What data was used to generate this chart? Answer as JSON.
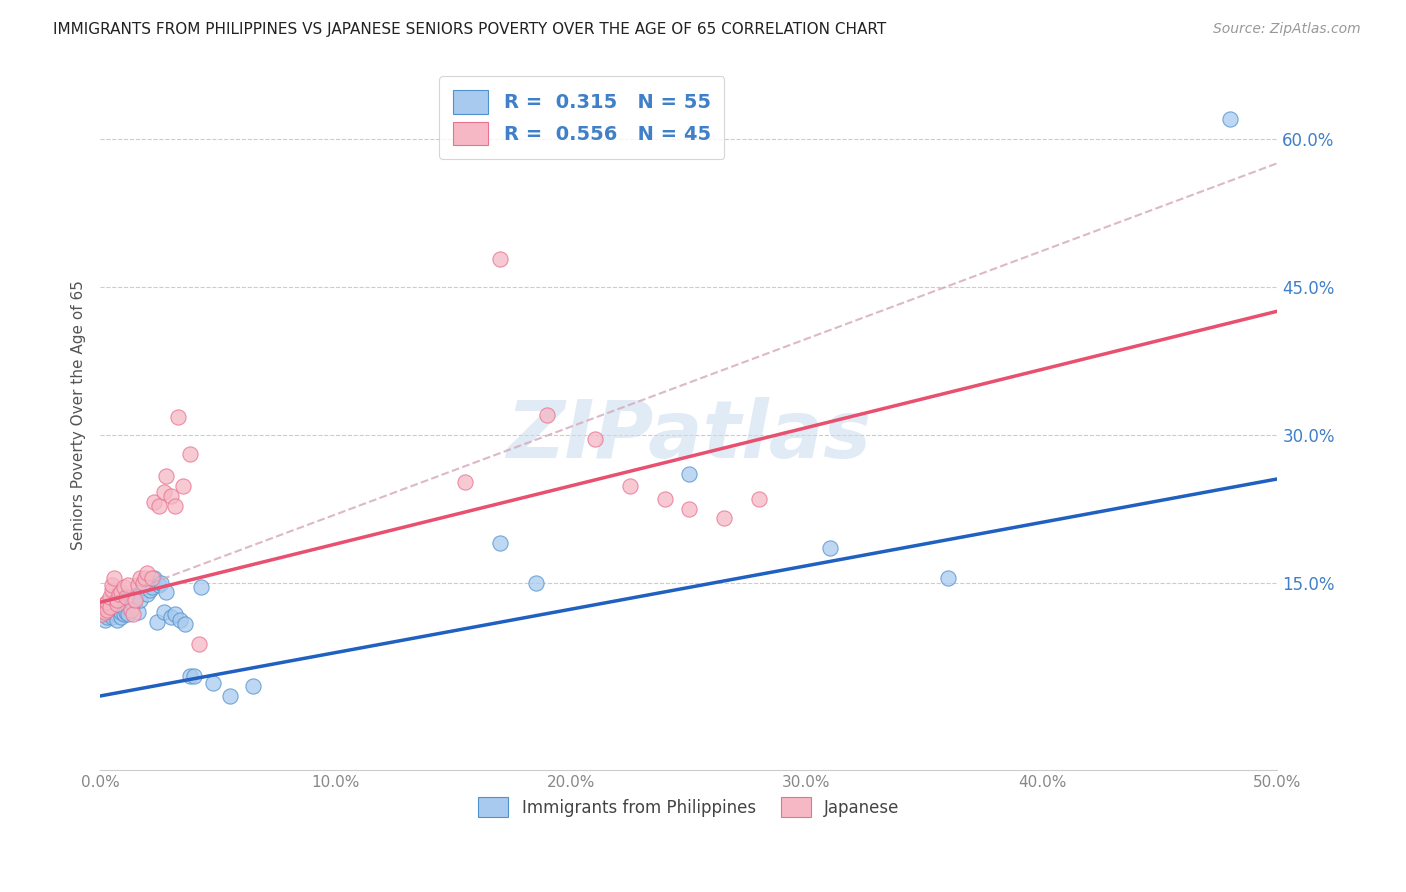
{
  "title": "IMMIGRANTS FROM PHILIPPINES VS JAPANESE SENIORS POVERTY OVER THE AGE OF 65 CORRELATION CHART",
  "source": "Source: ZipAtlas.com",
  "ylabel": "Seniors Poverty Over the Age of 65",
  "legend_label1": "Immigrants from Philippines",
  "legend_label2": "Japanese",
  "R1": 0.315,
  "N1": 55,
  "R2": 0.556,
  "N2": 45,
  "xlim": [
    0.0,
    0.5
  ],
  "ylim": [
    -0.04,
    0.68
  ],
  "yticks": [
    0.15,
    0.3,
    0.45,
    0.6
  ],
  "xticks": [
    0.0,
    0.1,
    0.2,
    0.3,
    0.4,
    0.5
  ],
  "color_blue_fill": "#A8CAEE",
  "color_pink_fill": "#F5B8C4",
  "color_blue_edge": "#5090CC",
  "color_pink_edge": "#E87090",
  "color_blue_line": "#2060C0",
  "color_pink_line": "#E85070",
  "color_dashed": "#D4A8B8",
  "color_ytick": "#4080C8",
  "color_xtick": "#888888",
  "watermark": "ZIPatlas",
  "blue_line_x0": 0.0,
  "blue_line_y0": 0.035,
  "blue_line_x1": 0.5,
  "blue_line_y1": 0.255,
  "pink_line_x0": 0.0,
  "pink_line_y0": 0.13,
  "pink_line_x1": 0.5,
  "pink_line_y1": 0.425,
  "dashed_line_x0": 0.0,
  "dashed_line_y0": 0.13,
  "dashed_line_x1": 0.5,
  "dashed_line_y1": 0.575,
  "blue_scatter_x": [
    0.001,
    0.002,
    0.002,
    0.003,
    0.003,
    0.004,
    0.004,
    0.005,
    0.005,
    0.006,
    0.006,
    0.007,
    0.007,
    0.008,
    0.008,
    0.009,
    0.009,
    0.01,
    0.01,
    0.011,
    0.011,
    0.012,
    0.012,
    0.013,
    0.014,
    0.015,
    0.016,
    0.017,
    0.018,
    0.019,
    0.02,
    0.021,
    0.022,
    0.023,
    0.024,
    0.025,
    0.026,
    0.027,
    0.028,
    0.03,
    0.032,
    0.034,
    0.036,
    0.038,
    0.04,
    0.043,
    0.048,
    0.055,
    0.065,
    0.17,
    0.185,
    0.25,
    0.31,
    0.36,
    0.48
  ],
  "blue_scatter_y": [
    0.12,
    0.118,
    0.112,
    0.122,
    0.115,
    0.118,
    0.125,
    0.13,
    0.115,
    0.12,
    0.125,
    0.118,
    0.112,
    0.122,
    0.128,
    0.115,
    0.12,
    0.118,
    0.125,
    0.12,
    0.13,
    0.125,
    0.118,
    0.135,
    0.128,
    0.135,
    0.12,
    0.132,
    0.145,
    0.148,
    0.138,
    0.142,
    0.145,
    0.155,
    0.11,
    0.148,
    0.15,
    0.12,
    0.14,
    0.115,
    0.118,
    0.112,
    0.108,
    0.055,
    0.055,
    0.145,
    0.048,
    0.035,
    0.045,
    0.19,
    0.15,
    0.26,
    0.185,
    0.155,
    0.62
  ],
  "pink_scatter_x": [
    0.001,
    0.002,
    0.002,
    0.003,
    0.003,
    0.004,
    0.004,
    0.005,
    0.005,
    0.006,
    0.007,
    0.007,
    0.008,
    0.009,
    0.01,
    0.011,
    0.012,
    0.013,
    0.014,
    0.015,
    0.016,
    0.017,
    0.018,
    0.019,
    0.02,
    0.022,
    0.023,
    0.025,
    0.027,
    0.03,
    0.032,
    0.035,
    0.038,
    0.042,
    0.028,
    0.033,
    0.155,
    0.17,
    0.19,
    0.21,
    0.225,
    0.24,
    0.25,
    0.265,
    0.28
  ],
  "pink_scatter_y": [
    0.118,
    0.12,
    0.128,
    0.122,
    0.13,
    0.125,
    0.135,
    0.142,
    0.148,
    0.155,
    0.128,
    0.132,
    0.138,
    0.14,
    0.145,
    0.135,
    0.148,
    0.122,
    0.118,
    0.132,
    0.148,
    0.155,
    0.15,
    0.155,
    0.16,
    0.155,
    0.232,
    0.228,
    0.242,
    0.238,
    0.228,
    0.248,
    0.28,
    0.088,
    0.258,
    0.318,
    0.252,
    0.478,
    0.32,
    0.295,
    0.248,
    0.235,
    0.225,
    0.215,
    0.235
  ]
}
